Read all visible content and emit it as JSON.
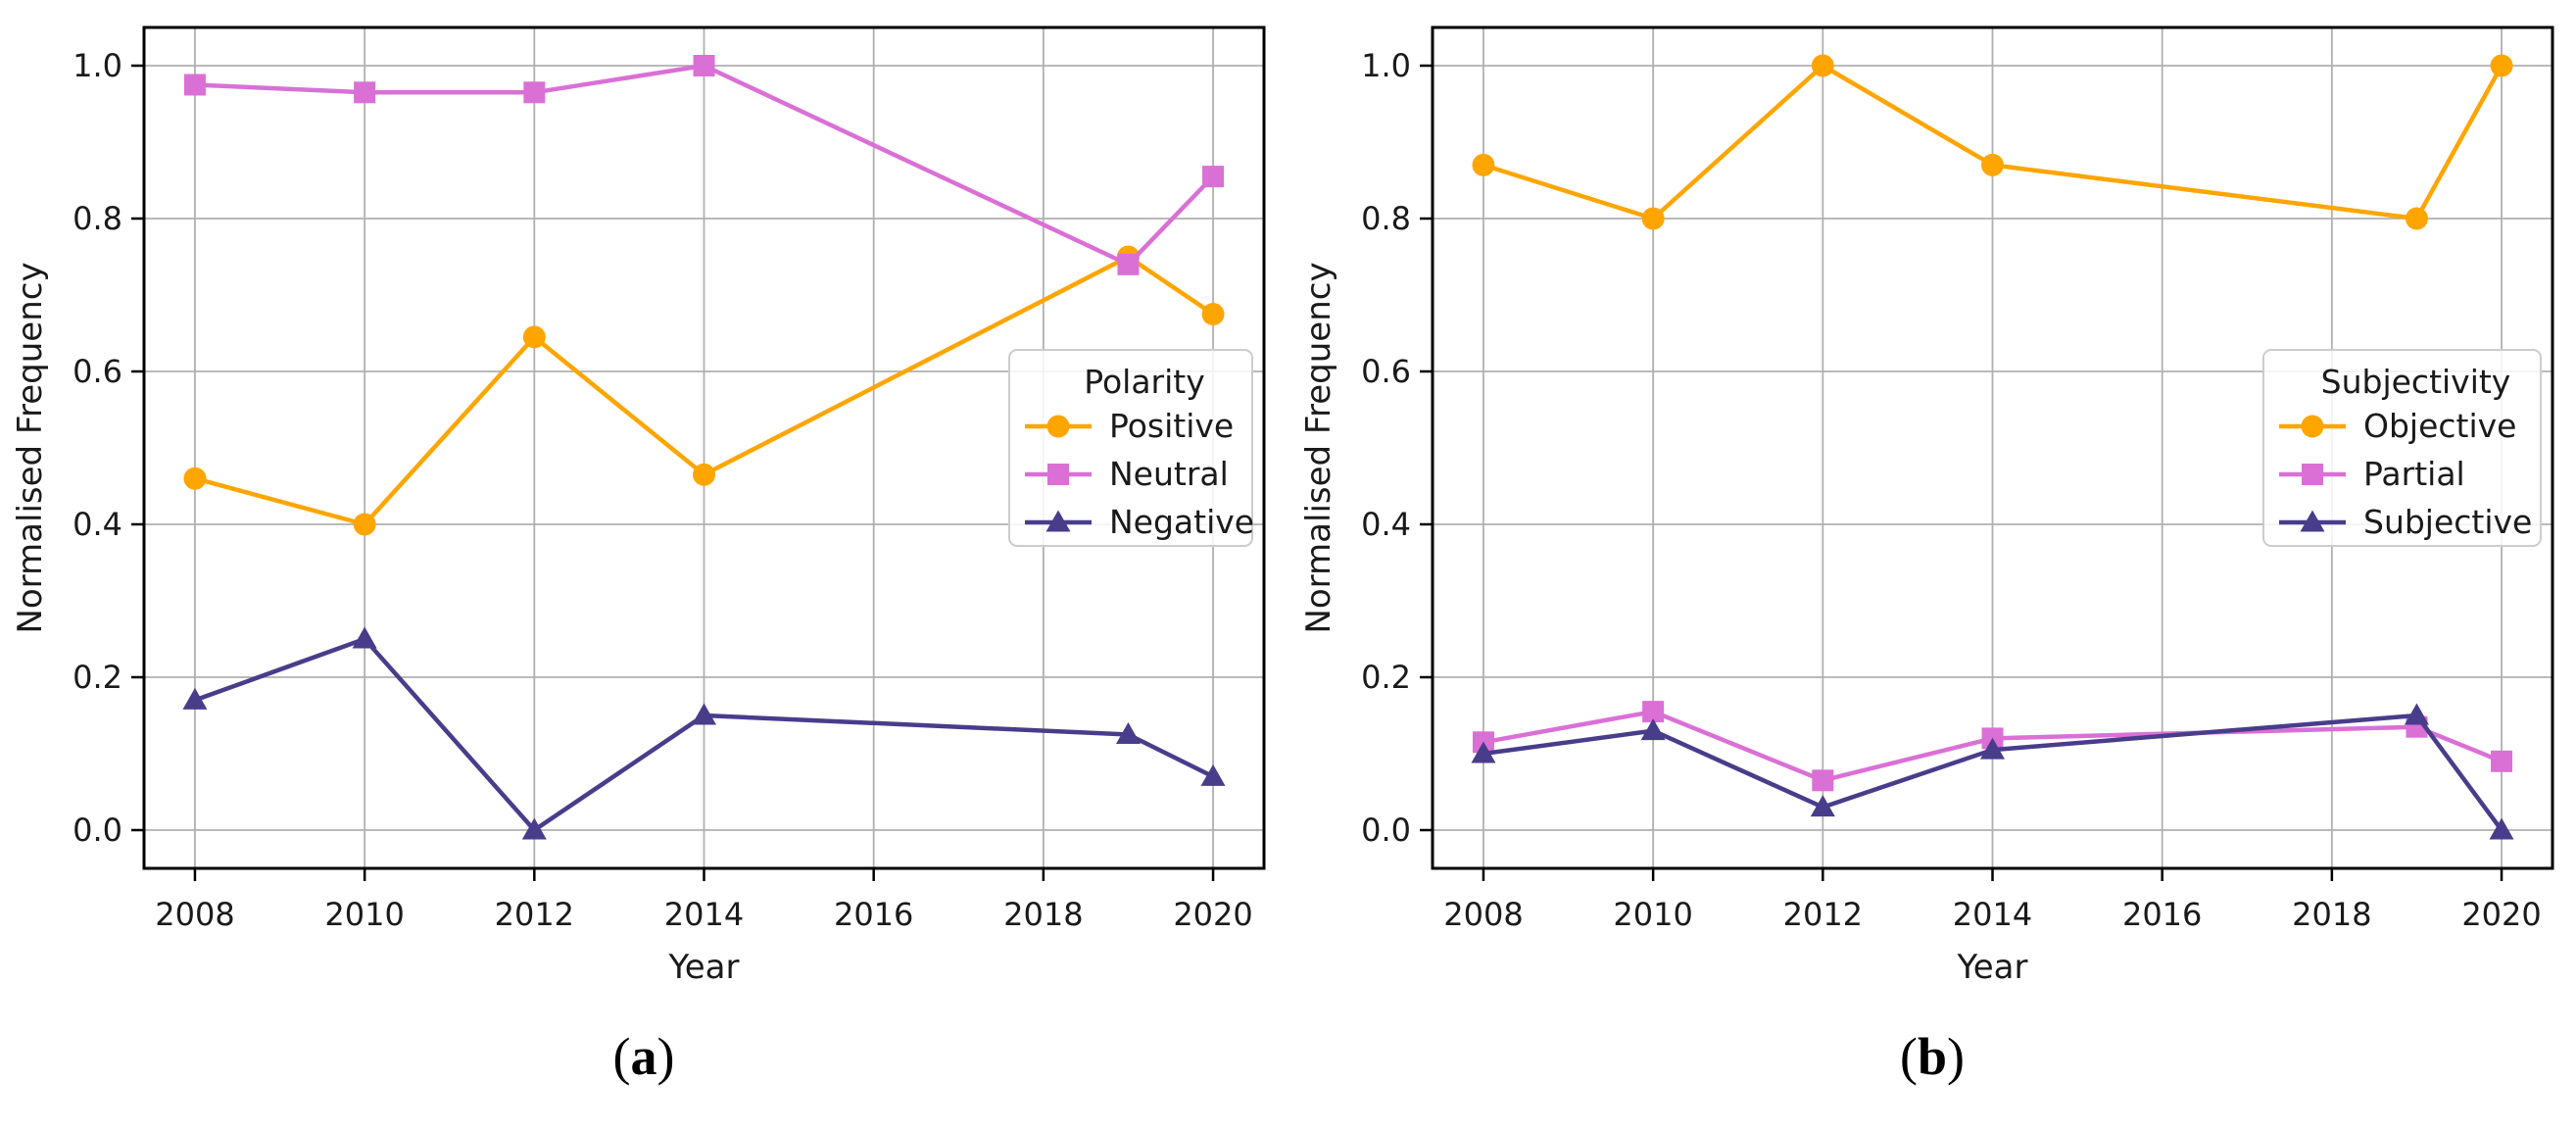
{
  "figure": {
    "background": "#ffffff",
    "styles": {
      "grid_color": "#b0b0b0",
      "spine_color": "#000000",
      "text_color": "#1a1a1a",
      "legend_bg": "#ffffff",
      "legend_border": "#cccccc"
    }
  },
  "chart_data": [
    {
      "id": "polarity",
      "type": "line",
      "title": "",
      "xlabel": "Year",
      "ylabel": "Normalised Frequency",
      "x": [
        2008,
        2010,
        2012,
        2014,
        2019,
        2020
      ],
      "xlim": [
        2007.4,
        2020.6
      ],
      "ylim": [
        -0.05,
        1.05
      ],
      "xticks": [
        2008,
        2010,
        2012,
        2014,
        2016,
        2018,
        2020
      ],
      "xtick_labels": [
        "2008",
        "2010",
        "2012",
        "2014",
        "2016",
        "2018",
        "2020"
      ],
      "yticks": [
        0.0,
        0.2,
        0.4,
        0.6,
        0.8,
        1.0
      ],
      "ytick_labels": [
        "0.0",
        "0.2",
        "0.4",
        "0.6",
        "0.8",
        "1.0"
      ],
      "grid": true,
      "legend": {
        "title": "Polarity",
        "position": "center-right"
      },
      "series": [
        {
          "name": "Positive",
          "marker": "circle",
          "color": "#FFA500",
          "values": [
            0.46,
            0.4,
            0.645,
            0.465,
            0.75,
            0.675
          ]
        },
        {
          "name": "Neutral",
          "marker": "square",
          "color": "#DA70D6",
          "values": [
            0.975,
            0.965,
            0.965,
            1.0,
            0.74,
            0.855
          ]
        },
        {
          "name": "Negative",
          "marker": "triangle",
          "color": "#483D8B",
          "values": [
            0.17,
            0.25,
            0.0,
            0.15,
            0.125,
            0.07
          ]
        }
      ],
      "caption": {
        "open": "(",
        "letter": "a",
        "close": ")"
      }
    },
    {
      "id": "subjectivity",
      "type": "line",
      "title": "",
      "xlabel": "Year",
      "ylabel": "Normalised Frequency",
      "x": [
        2008,
        2010,
        2012,
        2014,
        2019,
        2020
      ],
      "xlim": [
        2007.4,
        2020.6
      ],
      "ylim": [
        -0.05,
        1.05
      ],
      "xticks": [
        2008,
        2010,
        2012,
        2014,
        2016,
        2018,
        2020
      ],
      "xtick_labels": [
        "2008",
        "2010",
        "2012",
        "2014",
        "2016",
        "2018",
        "2020"
      ],
      "yticks": [
        0.0,
        0.2,
        0.4,
        0.6,
        0.8,
        1.0
      ],
      "ytick_labels": [
        "0.0",
        "0.2",
        "0.4",
        "0.6",
        "0.8",
        "1.0"
      ],
      "grid": true,
      "legend": {
        "title": "Subjectivity",
        "position": "center-right"
      },
      "series": [
        {
          "name": "Objective",
          "marker": "circle",
          "color": "#FFA500",
          "values": [
            0.87,
            0.8,
            1.0,
            0.87,
            0.8,
            1.0
          ]
        },
        {
          "name": "Partial",
          "marker": "square",
          "color": "#DA70D6",
          "values": [
            0.115,
            0.155,
            0.065,
            0.12,
            0.135,
            0.09
          ]
        },
        {
          "name": "Subjective",
          "marker": "triangle",
          "color": "#483D8B",
          "values": [
            0.1,
            0.13,
            0.03,
            0.105,
            0.15,
            0.0
          ]
        }
      ],
      "caption": {
        "open": "(",
        "letter": "b",
        "close": ")"
      }
    }
  ]
}
